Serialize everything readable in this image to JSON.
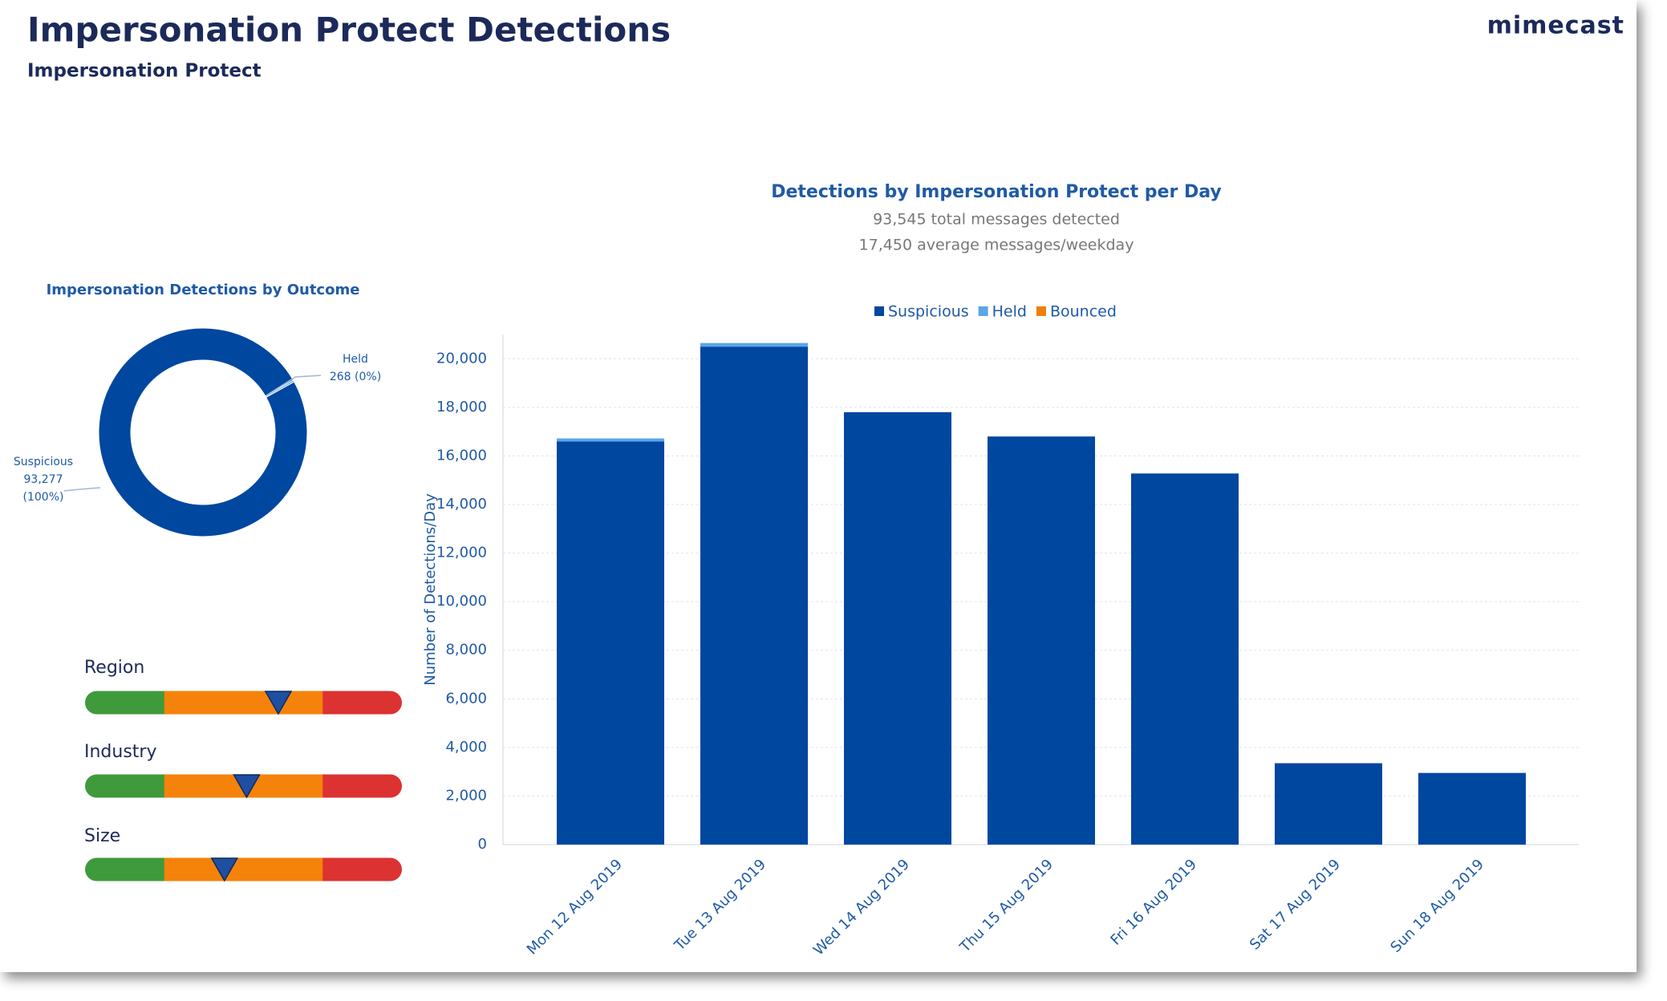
{
  "header": {
    "title": "Impersonation Protect Detections",
    "subtitle": "Impersonation Protect",
    "logo": "mimecast"
  },
  "chart_data": [
    {
      "type": "pie",
      "donut": true,
      "title": "Impersonation Detections by Outcome",
      "categories": [
        "Suspicious",
        "Held"
      ],
      "values": [
        93277,
        268
      ],
      "value_labels": [
        "93,277",
        "268"
      ],
      "percent_labels": [
        "(100%)",
        "(0%)"
      ],
      "colors": [
        "#0047a0",
        "#5aa6ea"
      ]
    },
    {
      "type": "bar",
      "stacked": true,
      "title": "Detections by Impersonation Protect per Day",
      "subtitles": [
        "93,545 total messages detected",
        "17,450 average messages/weekday"
      ],
      "y_label": "Number of Detections/Day",
      "categories": [
        "Mon 12 Aug 2019",
        "Tue 13 Aug 2019",
        "Wed 14 Aug 2019",
        "Thu 15 Aug 2019",
        "Fri 16 Aug 2019",
        "Sat 17 Aug 2019",
        "Sun 18 Aug 2019"
      ],
      "series": [
        {
          "name": "Suspicious",
          "color": "#0047a0",
          "values": [
            16600,
            20500,
            17800,
            16800,
            15277,
            3350,
            2950
          ]
        },
        {
          "name": "Held",
          "color": "#5aa6ea",
          "values": [
            120,
            148,
            0,
            0,
            0,
            0,
            0
          ]
        },
        {
          "name": "Bounced",
          "color": "#f07f09",
          "values": [
            0,
            0,
            0,
            0,
            0,
            0,
            0
          ]
        }
      ],
      "ylim": [
        0,
        21000
      ],
      "yticks": [
        0,
        {
          "value": 2000,
          "label": "2,000"
        },
        {
          "value": 4000,
          "label": "4,000"
        },
        {
          "value": 6000,
          "label": "6,000"
        },
        {
          "value": 8000,
          "label": "8,000"
        },
        {
          "value": 10000,
          "label": "10,000"
        },
        {
          "value": 12000,
          "label": "12,000"
        },
        {
          "value": 14000,
          "label": "14,000"
        },
        {
          "value": 16000,
          "label": "16,000"
        },
        {
          "value": 18000,
          "label": "18,000"
        },
        {
          "value": 20000,
          "label": "20,000"
        }
      ],
      "grid": true
    }
  ],
  "benchmarks": {
    "xlim": [
      0,
      1
    ],
    "items": [
      {
        "label": "Region",
        "value": 0.61
      },
      {
        "label": "Industry",
        "value": 0.51
      },
      {
        "label": "Size",
        "value": 0.44
      }
    ]
  }
}
